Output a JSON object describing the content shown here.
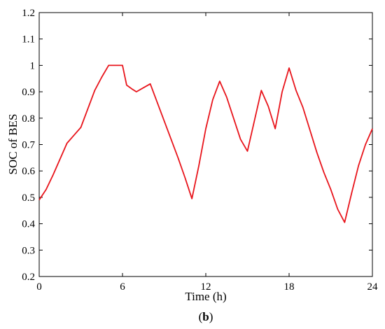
{
  "chart_data": {
    "type": "line",
    "title": "",
    "xlabel": "Time (h)",
    "ylabel": "SOC of BES",
    "xlim": [
      0,
      24
    ],
    "ylim": [
      0.2,
      1.2
    ],
    "xticks": [
      0,
      6,
      12,
      18,
      24
    ],
    "yticks": [
      0.2,
      0.3,
      0.4,
      0.5,
      0.6,
      0.7,
      0.8,
      0.9,
      1,
      1.1,
      1.2
    ],
    "xtick_labels": [
      "0",
      "6",
      "12",
      "18",
      "24"
    ],
    "ytick_labels": [
      "0.2",
      "0.3",
      "0.4",
      "0.5",
      "0.6",
      "0.7",
      "0.8",
      "0.9",
      "1",
      "1.1",
      "1.2"
    ],
    "grid": false,
    "series": [
      {
        "color": "#e8141b",
        "x": [
          0,
          0.5,
          1,
          1.5,
          2,
          2.5,
          3,
          3.5,
          4,
          4.5,
          5,
          5.5,
          6,
          6.3,
          6.7,
          7,
          7.5,
          8,
          8.5,
          9,
          9.5,
          10,
          10.5,
          11,
          11.5,
          12,
          12.5,
          13,
          13.5,
          14,
          14.5,
          15,
          15.5,
          16,
          16.5,
          17,
          17.5,
          18,
          18.5,
          19,
          19.5,
          20,
          20.5,
          21,
          21.5,
          22,
          22.5,
          23,
          23.5,
          24
        ],
        "y": [
          0.49,
          0.53,
          0.585,
          0.645,
          0.705,
          0.735,
          0.765,
          0.835,
          0.905,
          0.955,
          1.0,
          1.0,
          1.0,
          0.925,
          0.91,
          0.9,
          0.915,
          0.93,
          0.86,
          0.79,
          0.72,
          0.65,
          0.575,
          0.495,
          0.62,
          0.76,
          0.87,
          0.94,
          0.88,
          0.8,
          0.72,
          0.675,
          0.79,
          0.905,
          0.845,
          0.76,
          0.9,
          0.99,
          0.905,
          0.84,
          0.755,
          0.67,
          0.595,
          0.53,
          0.455,
          0.405,
          0.515,
          0.62,
          0.7,
          0.76
        ]
      }
    ]
  },
  "panel_label": "(b)",
  "panel_label_parts": {
    "open": "(",
    "letter": "b",
    "close": ")"
  }
}
